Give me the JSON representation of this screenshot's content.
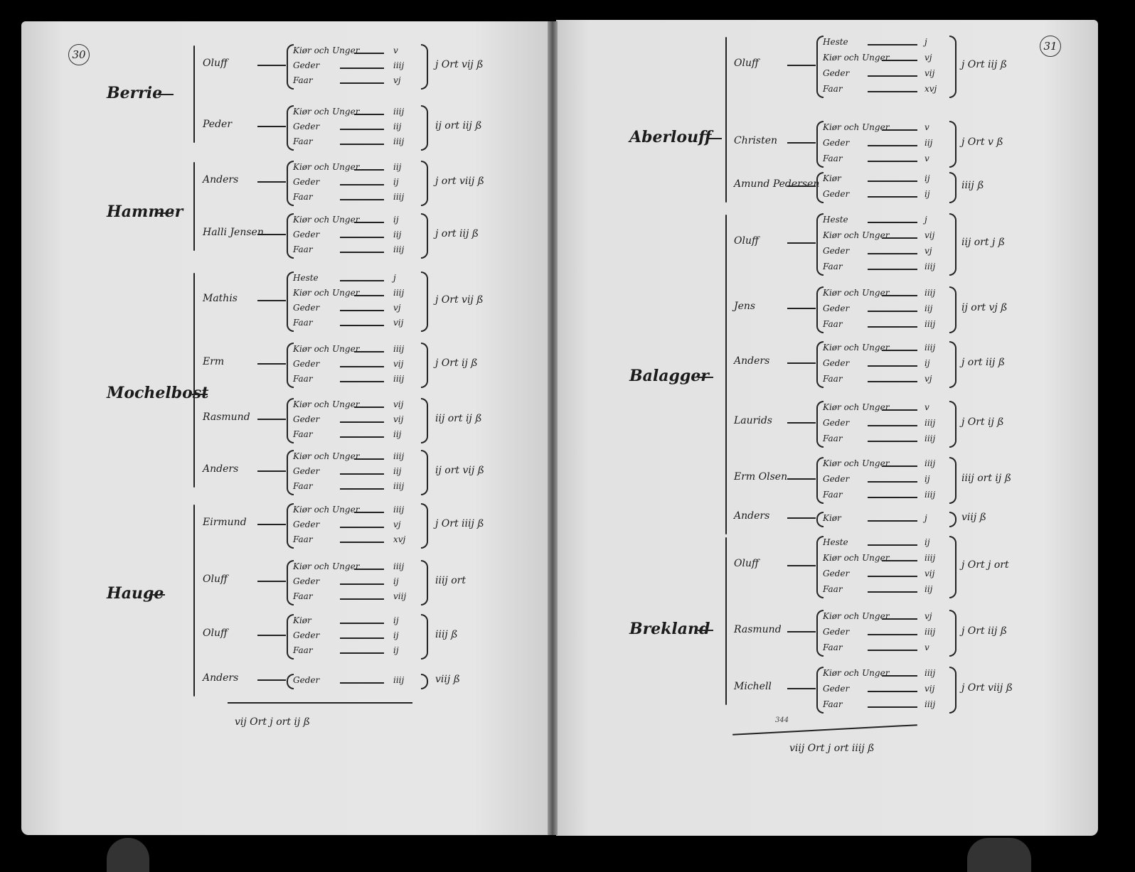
{
  "left_page": {
    "page_number": "30",
    "farms": [
      {
        "name": "Berrie",
        "entries": [
          {
            "name": "Oluff",
            "items": [
              [
                "Kiør och Unger",
                "v"
              ],
              [
                "Geder",
                "iiij"
              ],
              [
                "Faar",
                "vj"
              ]
            ],
            "total": "j Ort vij ß"
          },
          {
            "name": "Peder",
            "items": [
              [
                "Kiør och Unger",
                "iiij"
              ],
              [
                "Geder",
                "iij"
              ],
              [
                "Faar",
                "iiij"
              ]
            ],
            "total": "ij ort iij ß"
          }
        ]
      },
      {
        "name": "Hammer",
        "entries": [
          {
            "name": "Anders",
            "items": [
              [
                "Kiør och Unger",
                "iij"
              ],
              [
                "Geder",
                "ij"
              ],
              [
                "Faar",
                "iiij"
              ]
            ],
            "total": "j ort viij ß"
          },
          {
            "name": "Halli Jensen",
            "items": [
              [
                "Kiør och Unger",
                "ij"
              ],
              [
                "Geder",
                "iij"
              ],
              [
                "Faar",
                "iiij"
              ]
            ],
            "total": "j ort iij ß"
          }
        ]
      },
      {
        "name": "Mochelbost",
        "entries": [
          {
            "name": "Mathis",
            "items": [
              [
                "Heste",
                "j"
              ],
              [
                "Kiør och Unger",
                "iiij"
              ],
              [
                "Geder",
                "vj"
              ],
              [
                "Faar",
                "vij"
              ]
            ],
            "total": "j Ort vij ß"
          },
          {
            "name": "Erm",
            "items": [
              [
                "Kiør och Unger",
                "iiij"
              ],
              [
                "Geder",
                "vij"
              ],
              [
                "Faar",
                "iiij"
              ]
            ],
            "total": "j Ort ij ß"
          },
          {
            "name": "Rasmund",
            "items": [
              [
                "Kiør och Unger",
                "vij"
              ],
              [
                "Geder",
                "vij"
              ],
              [
                "Faar",
                "iij"
              ]
            ],
            "total": "iij ort ij ß"
          },
          {
            "name": "Anders",
            "items": [
              [
                "Kiør och Unger",
                "iiij"
              ],
              [
                "Geder",
                "iij"
              ],
              [
                "Faar",
                "iiij"
              ]
            ],
            "total": "ij ort vij ß"
          }
        ]
      },
      {
        "name": "Hauge",
        "entries": [
          {
            "name": "Eirmund",
            "items": [
              [
                "Kiør och Unger",
                "iiij"
              ],
              [
                "Geder",
                "vj"
              ],
              [
                "Faar",
                "xvj"
              ]
            ],
            "total": "j Ort iiij ß"
          },
          {
            "name": "Oluff",
            "items": [
              [
                "Kiør och Unger",
                "iiij"
              ],
              [
                "Geder",
                "ij"
              ],
              [
                "Faar",
                "viij"
              ]
            ],
            "total": "iiij ort"
          },
          {
            "name": "Oluff",
            "items": [
              [
                "Kiør",
                "ij"
              ],
              [
                "Geder",
                "ij"
              ],
              [
                "Faar",
                "ij"
              ]
            ],
            "total": "iiij ß"
          },
          {
            "name": "Anders",
            "items": [
              [
                "Geder",
                "iiij"
              ]
            ],
            "total": "viij ß"
          }
        ]
      }
    ],
    "page_total": "vij Ort j ort ij ß"
  },
  "right_page": {
    "page_number": "31",
    "farms": [
      {
        "name": "Aberlouff",
        "entries": [
          {
            "name": "Oluff",
            "items": [
              [
                "Heste",
                "j"
              ],
              [
                "Kiør och Unger",
                "vj"
              ],
              [
                "Geder",
                "vij"
              ],
              [
                "Faar",
                "xvj"
              ]
            ],
            "total": "j Ort iij ß"
          },
          {
            "name": "Christen",
            "items": [
              [
                "Kiør och Unger",
                "v"
              ],
              [
                "Geder",
                "iij"
              ],
              [
                "Faar",
                "v"
              ]
            ],
            "total": "j Ort v ß"
          },
          {
            "name": "Amund Pedersen",
            "items": [
              [
                "Kiør",
                "ij"
              ],
              [
                "Geder",
                "ij"
              ]
            ],
            "total": "iiij ß"
          }
        ]
      },
      {
        "name": "Balagger",
        "entries": [
          {
            "name": "Oluff",
            "items": [
              [
                "Heste",
                "j"
              ],
              [
                "Kiør och Unger",
                "vij"
              ],
              [
                "Geder",
                "vj"
              ],
              [
                "Faar",
                "iiij"
              ]
            ],
            "total": "iij ort j ß"
          },
          {
            "name": "Jens",
            "items": [
              [
                "Kiør och Unger",
                "iiij"
              ],
              [
                "Geder",
                "iij"
              ],
              [
                "Faar",
                "iiij"
              ]
            ],
            "total": "ij ort vj ß"
          },
          {
            "name": "Anders",
            "items": [
              [
                "Kiør och Unger",
                "iiij"
              ],
              [
                "Geder",
                "ij"
              ],
              [
                "Faar",
                "vj"
              ]
            ],
            "total": "j ort iij ß"
          },
          {
            "name": "Laurids",
            "items": [
              [
                "Kiør och Unger",
                "v"
              ],
              [
                "Geder",
                "iiij"
              ],
              [
                "Faar",
                "iiij"
              ]
            ],
            "total": "j Ort ij ß"
          },
          {
            "name": "Erm Olsen",
            "items": [
              [
                "Kiør och Unger",
                "iiij"
              ],
              [
                "Geder",
                "ij"
              ],
              [
                "Faar",
                "iiij"
              ]
            ],
            "total": "iiij ort ij ß"
          },
          {
            "name": "Anders",
            "items": [
              [
                "Kiør",
                "j"
              ]
            ],
            "total": "viij ß"
          }
        ]
      },
      {
        "name": "Brekland",
        "entries": [
          {
            "name": "Oluff",
            "items": [
              [
                "Heste",
                "ij"
              ],
              [
                "Kiør och Unger",
                "iiij"
              ],
              [
                "Geder",
                "vij"
              ],
              [
                "Faar",
                "iij"
              ]
            ],
            "total": "j Ort j ort"
          },
          {
            "name": "Rasmund",
            "items": [
              [
                "Kiør och Unger",
                "vj"
              ],
              [
                "Geder",
                "iiij"
              ],
              [
                "Faar",
                "v"
              ]
            ],
            "total": "j Ort iij ß"
          },
          {
            "name": "Michell",
            "items": [
              [
                "Kiør och Unger",
                "iiij"
              ],
              [
                "Geder",
                "vij"
              ],
              [
                "Faar",
                "iiij"
              ]
            ],
            "total": "j Ort viij ß"
          }
        ]
      }
    ],
    "marginal_note": "344",
    "page_total": "viij Ort j ort iiij ß"
  }
}
